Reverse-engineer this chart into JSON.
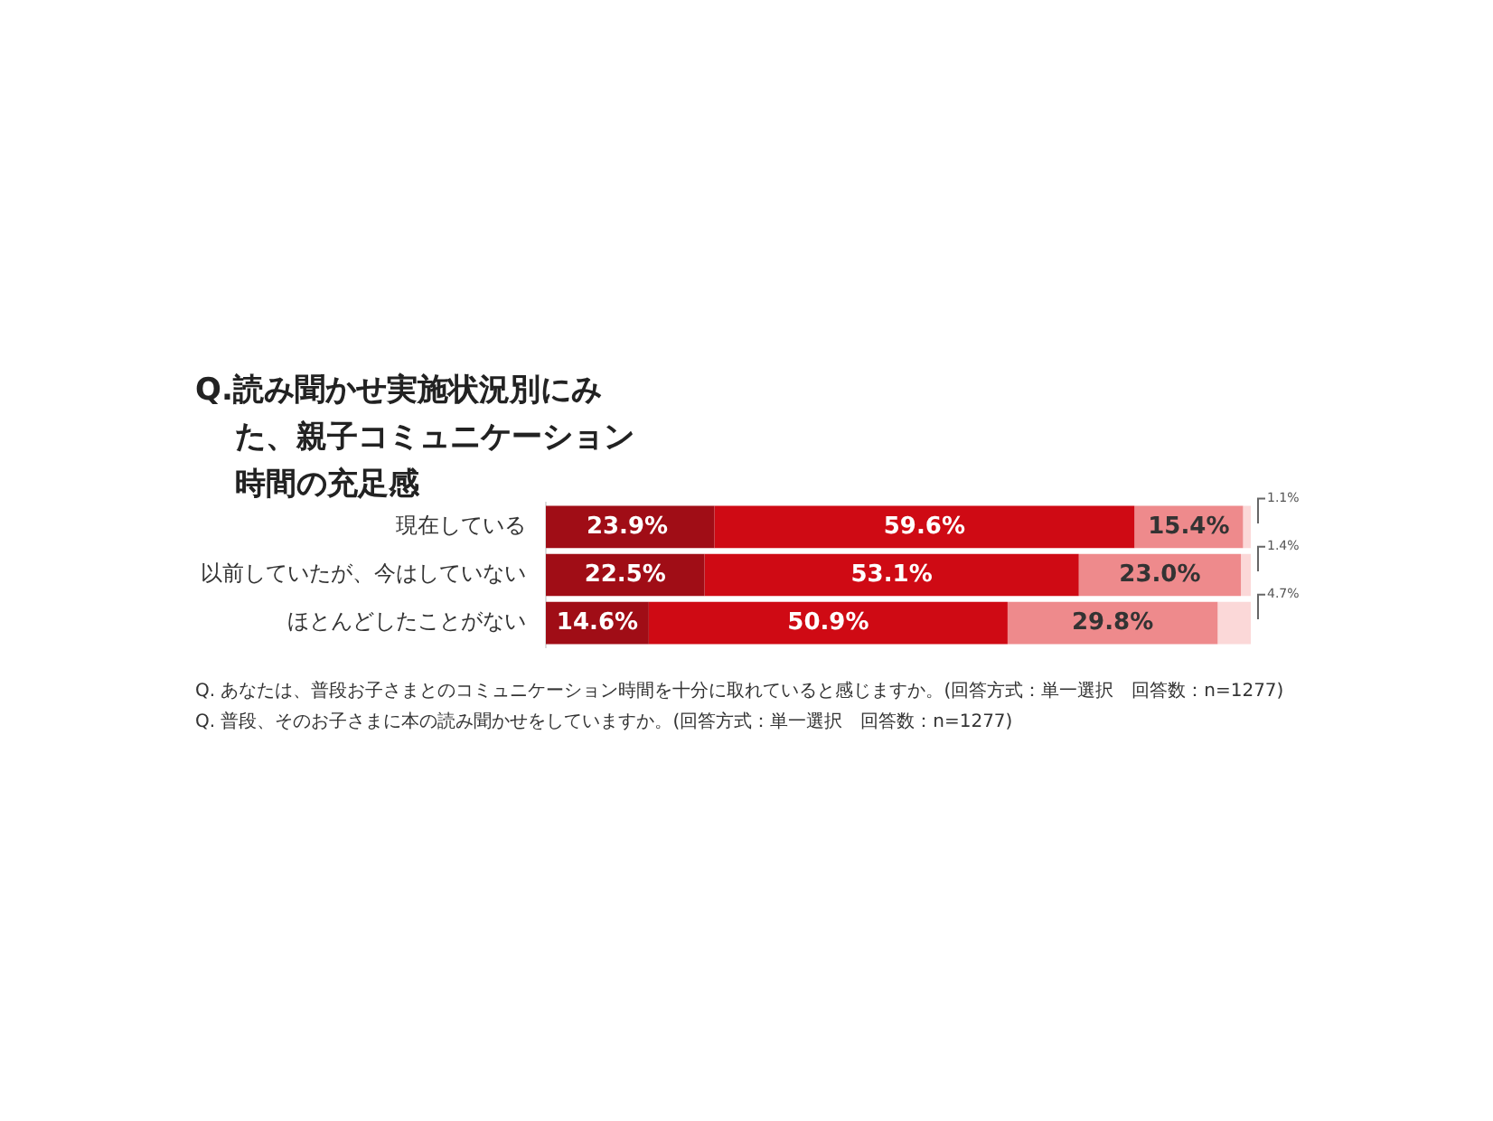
{
  "chart_data": {
    "type": "bar",
    "orientation": "horizontal",
    "stacked": true,
    "title": "Q.読み聞かせ実施状況別にみた、親子コミュニケーション時間の充足感",
    "categories": [
      "現在している",
      "以前していたが、今はしていない",
      "ほとんどしたことがない"
    ],
    "series": [
      {
        "color": "#a00d16",
        "values": [
          23.9,
          22.5,
          14.6
        ],
        "value_labels": [
          "23.9%",
          "22.5%",
          "14.6%"
        ]
      },
      {
        "color": "#cf0a14",
        "values": [
          59.6,
          53.1,
          50.9
        ],
        "value_labels": [
          "59.6%",
          "53.1%",
          "50.9%"
        ]
      },
      {
        "color": "#ee8a8c",
        "values": [
          15.4,
          23.0,
          29.8
        ],
        "value_labels": [
          "15.4%",
          "23.0%",
          "29.8%"
        ]
      },
      {
        "color": "#fbd8d8",
        "values": [
          1.1,
          1.4,
          4.7
        ],
        "value_labels": [
          "1.1%",
          "1.4%",
          "4.7%"
        ]
      }
    ],
    "legend": false,
    "grid": false,
    "tick_labels": "y",
    "annotations": [
      "Q. あなたは、普段お子さまとのコミュニケーション時間を十分に取れていると感じますか。(回答方式：単一選択　回答数：n=1277)",
      "Q. 普段、そのお子さまに本の読み聞かせをしていますか。(回答方式：単一選択　回答数：n=1277)"
    ]
  }
}
